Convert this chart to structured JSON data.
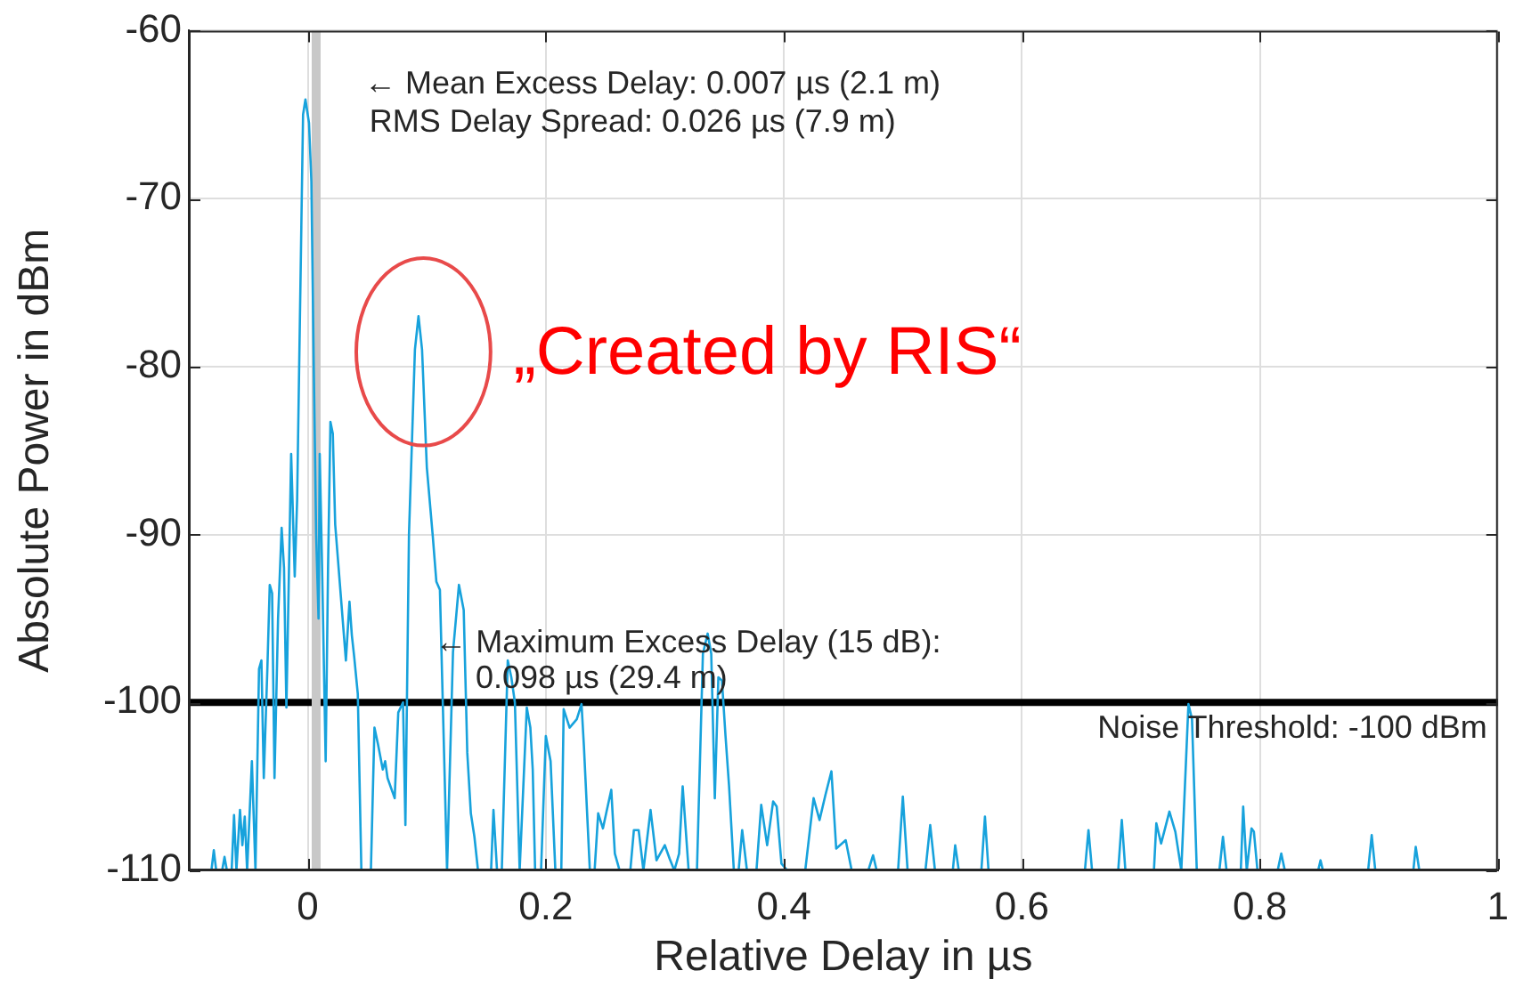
{
  "chart_data": {
    "type": "line",
    "xlabel": "Relative Delay in µs",
    "ylabel": "Absolute Power in dBm",
    "xlim": [
      -0.1,
      1
    ],
    "xticks": [
      0,
      0.2,
      0.4,
      0.6,
      0.8,
      1
    ],
    "ylim": [
      -110,
      -60
    ],
    "yticks": [
      -110,
      -100,
      -90,
      -80,
      -70,
      -60
    ],
    "grid": true,
    "marker": "none",
    "x": [
      -0.081,
      -0.079,
      -0.077,
      -0.075,
      -0.072,
      -0.07,
      -0.068,
      -0.066,
      -0.064,
      -0.062,
      -0.06,
      -0.057,
      -0.055,
      -0.053,
      -0.051,
      -0.047,
      -0.044,
      -0.041,
      -0.039,
      -0.037,
      -0.034,
      -0.032,
      -0.03,
      -0.028,
      -0.025,
      -0.022,
      -0.02,
      -0.018,
      -0.014,
      -0.011,
      -0.009,
      -0.004,
      -0.002,
      0.001,
      0.003,
      0.005,
      0.007,
      0.009,
      0.01,
      0.012,
      0.015,
      0.017,
      0.019,
      0.021,
      0.023,
      0.032,
      0.035,
      0.037,
      0.039,
      0.042,
      0.045,
      0.049,
      0.053,
      0.056,
      0.059,
      0.063,
      0.065,
      0.067,
      0.073,
      0.076,
      0.08,
      0.082,
      0.085,
      0.09,
      0.093,
      0.096,
      0.1,
      0.105,
      0.108,
      0.111,
      0.117,
      0.122,
      0.127,
      0.131,
      0.134,
      0.137,
      0.14,
      0.143,
      0.148,
      0.154,
      0.156,
      0.159,
      0.161,
      0.163,
      0.168,
      0.171,
      0.174,
      0.178,
      0.184,
      0.187,
      0.189,
      0.191,
      0.194,
      0.196,
      0.2,
      0.204,
      0.208,
      0.211,
      0.213,
      0.215,
      0.22,
      0.226,
      0.23,
      0.232,
      0.237,
      0.239,
      0.241,
      0.244,
      0.248,
      0.251,
      0.255,
      0.258,
      0.262,
      0.266,
      0.271,
      0.274,
      0.278,
      0.282,
      0.288,
      0.293,
      0.3,
      0.304,
      0.308,
      0.312,
      0.315,
      0.32,
      0.323,
      0.327,
      0.332,
      0.336,
      0.339,
      0.342,
      0.345,
      0.348,
      0.351,
      0.354,
      0.358,
      0.36,
      0.362,
      0.365,
      0.369,
      0.373,
      0.377,
      0.381,
      0.386,
      0.391,
      0.394,
      0.398,
      0.403,
      0.41,
      0.418,
      0.425,
      0.43,
      0.435,
      0.44,
      0.444,
      0.452,
      0.457,
      0.464,
      0.471,
      0.475,
      0.478,
      0.487,
      0.496,
      0.5,
      0.504,
      0.511,
      0.519,
      0.523,
      0.527,
      0.535,
      0.542,
      0.544,
      0.547,
      0.556,
      0.566,
      0.569,
      0.572,
      0.612,
      0.653,
      0.656,
      0.659,
      0.67,
      0.681,
      0.684,
      0.687,
      0.699,
      0.711,
      0.713,
      0.717,
      0.72,
      0.724,
      0.729,
      0.734,
      0.74,
      0.743,
      0.747,
      0.756,
      0.766,
      0.769,
      0.772,
      0.778,
      0.784,
      0.786,
      0.789,
      0.793,
      0.795,
      0.798,
      0.807,
      0.815,
      0.818,
      0.821,
      0.835,
      0.849,
      0.851,
      0.853,
      0.872,
      0.891,
      0.894,
      0.897,
      0.913,
      0.929,
      0.931,
      0.934
    ],
    "series": [
      {
        "color": "#17a2dc",
        "values": [
          -110,
          -108.8,
          -110,
          null,
          -110,
          -109.2,
          -110,
          null,
          -110,
          -106.7,
          -110,
          -106.4,
          -108.5,
          -106.8,
          -110,
          -103.5,
          -110,
          -98,
          -97.5,
          -104.5,
          -98,
          -93,
          -93.5,
          -104.5,
          -95,
          -89.6,
          -92,
          -100.3,
          -85.2,
          -92.5,
          -88,
          -65,
          -64.1,
          -65.5,
          -69,
          -80,
          -90,
          -95,
          -85.2,
          -92,
          -103.5,
          -92,
          -83.3,
          -84,
          -89.4,
          -97.5,
          -94,
          -96,
          -97.3,
          -99.5,
          -110,
          null,
          -110,
          -101.5,
          -102.5,
          -104,
          -103.5,
          -104.5,
          -105.7,
          -100.6,
          -100,
          -107.3,
          -90,
          -79,
          -77,
          -79,
          -86,
          -90.1,
          -92.8,
          -93.3,
          -110,
          -97,
          -93,
          -94.5,
          -103,
          -106.6,
          -108,
          -110,
          null,
          -110,
          -106.4,
          -110,
          null,
          -110,
          -97.5,
          -98.5,
          -100,
          -110,
          -100.3,
          -101.5,
          -104,
          -110,
          null,
          -110,
          -102,
          -103.5,
          -110,
          null,
          -110,
          -100.4,
          -101.5,
          -101,
          -100.1,
          -102.6,
          -110,
          null,
          -110,
          -106.6,
          -107.5,
          -106.5,
          -105.2,
          -109,
          -110,
          null,
          -110,
          -107.6,
          -107.6,
          -110,
          -106.4,
          -109.4,
          -108.5,
          -109.3,
          -110,
          -109,
          -105,
          -110,
          null,
          -110,
          -97.1,
          -95.9,
          -97.1,
          -105.7,
          -98.5,
          -98.7,
          -102,
          -105,
          -110,
          null,
          -110,
          -107.6,
          -110,
          null,
          -110,
          -106.1,
          -108.5,
          -105.9,
          -106.2,
          -109.6,
          -110,
          null,
          -110,
          -105.7,
          -107,
          -105.5,
          -104.1,
          -108.7,
          -108.2,
          -110,
          null,
          -110,
          -109.1,
          -110,
          null,
          -110,
          -105.6,
          -110,
          null,
          -110,
          -107.3,
          -110,
          null,
          -110,
          -108.5,
          -110,
          null,
          -110,
          -106.8,
          -110,
          null,
          -110,
          -107.6,
          -110,
          null,
          -110,
          -107,
          -110,
          null,
          -110,
          -107.2,
          -108.4,
          -107.6,
          -106.5,
          -107.7,
          -110,
          -100.1,
          -101,
          -110,
          null,
          -110,
          -108,
          -110,
          null,
          -110,
          -106.2,
          -110,
          -107.5,
          -107.7,
          -110,
          null,
          -110,
          -109,
          -110,
          null,
          -110,
          -109.4,
          -110,
          null,
          -110,
          -107.9,
          -110,
          null,
          -110,
          -108.6,
          -110
        ]
      }
    ],
    "ref_lines": [
      {
        "axis": "y",
        "value": -100,
        "label": "Noise Threshold: -100 dBm",
        "color": "#000000"
      },
      {
        "axis": "x",
        "value": 0.007,
        "color": "#c8c8c8"
      }
    ],
    "annotations": [
      "← Mean Excess Delay: 0.007 µs (2.1 m)",
      "RMS Delay Spread: 0.026 µs (7.9 m)",
      "„Created by RIS“",
      "← Maximum Excess Delay (15 dB):",
      "0.098 µs (29.4 m)"
    ]
  }
}
